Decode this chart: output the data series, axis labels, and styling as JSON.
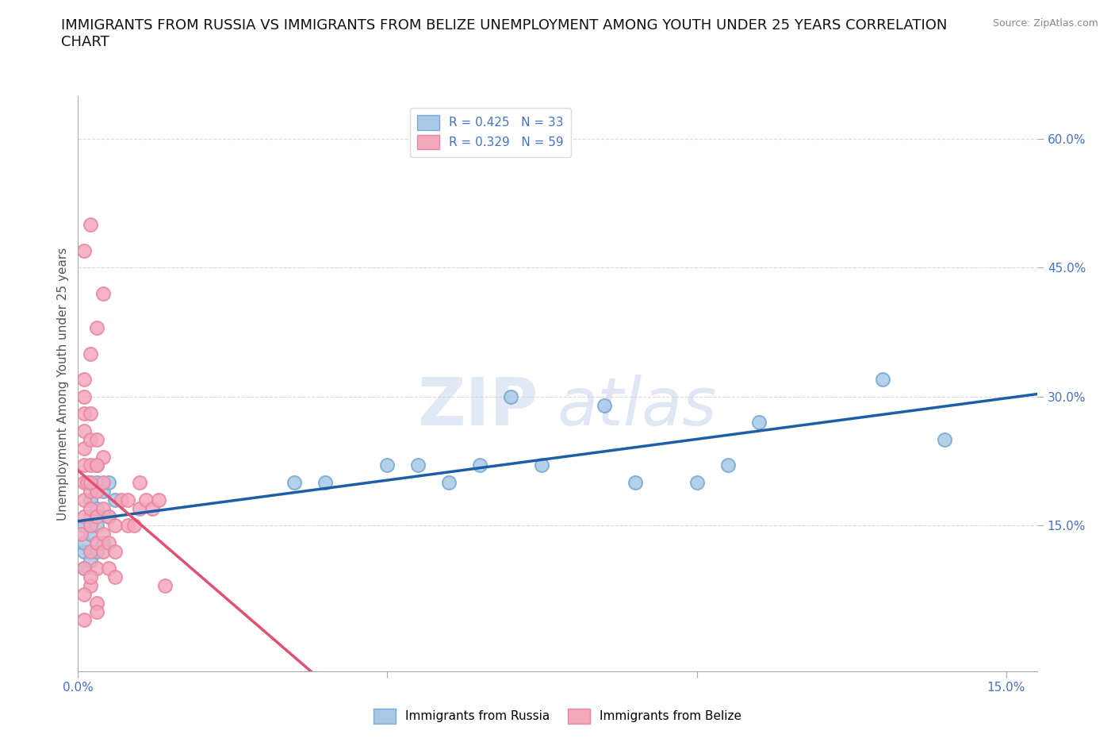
{
  "title": "IMMIGRANTS FROM RUSSIA VS IMMIGRANTS FROM BELIZE UNEMPLOYMENT AMONG YOUTH UNDER 25 YEARS CORRELATION\nCHART",
  "source_text": "Source: ZipAtlas.com",
  "ylabel": "Unemployment Among Youth under 25 years",
  "russia_color": "#a8c8e8",
  "belize_color": "#f4a8bc",
  "russia_edge_color": "#7aaad0",
  "belize_edge_color": "#e888a4",
  "russia_line_color": "#1a5fa8",
  "belize_line_color": "#e05070",
  "belize_dash_color": "#f0a0b8",
  "russia_R": 0.425,
  "russia_N": 33,
  "belize_R": 0.329,
  "belize_N": 59,
  "watermark_ZIP": "ZIP",
  "watermark_atlas": "atlas",
  "xlim": [
    0.0,
    0.155
  ],
  "ylim": [
    -0.02,
    0.65
  ],
  "ytick_right_vals": [
    0.15,
    0.3,
    0.45,
    0.6
  ],
  "ytick_right_labels": [
    "15.0%",
    "30.0%",
    "45.0%",
    "60.0%"
  ],
  "grid_color": "#d0d0d0",
  "background_color": "#ffffff",
  "title_fontsize": 13,
  "axis_label_fontsize": 11,
  "tick_fontsize": 11,
  "legend_fontsize": 11,
  "russia_x": [
    0.001,
    0.001,
    0.001,
    0.001,
    0.002,
    0.002,
    0.002,
    0.002,
    0.002,
    0.003,
    0.003,
    0.003,
    0.003,
    0.004,
    0.004,
    0.005,
    0.005,
    0.006,
    0.035,
    0.04,
    0.05,
    0.055,
    0.06,
    0.065,
    0.07,
    0.075,
    0.085,
    0.09,
    0.1,
    0.105,
    0.11,
    0.13,
    0.14
  ],
  "russia_y": [
    0.1,
    0.12,
    0.13,
    0.15,
    0.11,
    0.14,
    0.16,
    0.18,
    0.2,
    0.12,
    0.15,
    0.17,
    0.2,
    0.13,
    0.19,
    0.16,
    0.2,
    0.18,
    0.2,
    0.2,
    0.22,
    0.22,
    0.2,
    0.22,
    0.3,
    0.22,
    0.29,
    0.2,
    0.2,
    0.22,
    0.27,
    0.32,
    0.25
  ],
  "belize_x": [
    0.0005,
    0.001,
    0.001,
    0.001,
    0.001,
    0.001,
    0.001,
    0.001,
    0.001,
    0.0015,
    0.002,
    0.002,
    0.002,
    0.002,
    0.002,
    0.002,
    0.002,
    0.003,
    0.003,
    0.003,
    0.003,
    0.003,
    0.003,
    0.004,
    0.004,
    0.004,
    0.004,
    0.004,
    0.005,
    0.005,
    0.005,
    0.006,
    0.006,
    0.006,
    0.007,
    0.008,
    0.008,
    0.009,
    0.01,
    0.01,
    0.011,
    0.012,
    0.013,
    0.014,
    0.001,
    0.002,
    0.003,
    0.004,
    0.002,
    0.003,
    0.001,
    0.002,
    0.001,
    0.002,
    0.003,
    0.001,
    0.002,
    0.003,
    0.001
  ],
  "belize_y": [
    0.14,
    0.16,
    0.18,
    0.2,
    0.22,
    0.24,
    0.26,
    0.28,
    0.3,
    0.2,
    0.12,
    0.15,
    0.17,
    0.19,
    0.22,
    0.25,
    0.28,
    0.1,
    0.13,
    0.16,
    0.19,
    0.22,
    0.25,
    0.12,
    0.14,
    0.17,
    0.2,
    0.23,
    0.1,
    0.13,
    0.16,
    0.09,
    0.12,
    0.15,
    0.18,
    0.15,
    0.18,
    0.15,
    0.17,
    0.2,
    0.18,
    0.17,
    0.18,
    0.08,
    0.32,
    0.35,
    0.38,
    0.42,
    0.2,
    0.22,
    0.47,
    0.5,
    0.1,
    0.08,
    0.06,
    0.07,
    0.09,
    0.05,
    0.04
  ]
}
